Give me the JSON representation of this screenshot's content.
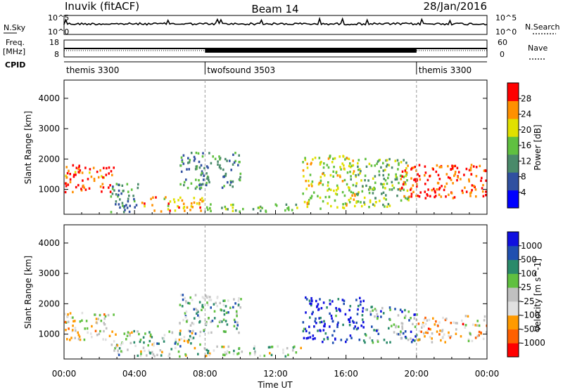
{
  "header": {
    "station": "Inuvik (fitACF)",
    "beam": "Beam 14",
    "date": "28/Jan/2016"
  },
  "nsky_panel": {
    "left_label": "N.Sky",
    "right_label": "N.Search",
    "tick_top": "10^5",
    "tick_bottom": "10^0"
  },
  "freq_panel": {
    "left_label_1": "Freq.",
    "left_label_2": "[MHz]",
    "right_label": "Nave",
    "left_tick_top": "18",
    "left_tick_bottom": "8",
    "right_tick_top": "60",
    "right_tick_bottom": "0"
  },
  "cpid_panel": {
    "label": "CPID",
    "segments": [
      {
        "name": "themis 3300",
        "start_hour": 0,
        "end_hour": 8
      },
      {
        "name": "twofsound 3503",
        "start_hour": 8,
        "end_hour": 20
      },
      {
        "name": "themis 3300",
        "start_hour": 20,
        "end_hour": 24
      }
    ]
  },
  "x_axis": {
    "label": "Time UT",
    "ticks": [
      "00:00",
      "04:00",
      "08:00",
      "12:00",
      "16:00",
      "20:00",
      "00:00"
    ]
  },
  "power_colorbar": {
    "label": "Power [dB]",
    "ticks": [
      "4",
      "8",
      "12",
      "16",
      "20",
      "24",
      "28"
    ]
  },
  "velocity_colorbar": {
    "label": "Velocity [m s^-1]",
    "ticks": [
      "-1000",
      "-500",
      "-100",
      "-25",
      "25",
      "100",
      "500",
      "1000"
    ]
  },
  "chart_data": [
    {
      "type": "heatmap",
      "name": "power",
      "ylabel": "Slant Range [km]",
      "xlabel": "",
      "xlim": [
        0,
        24
      ],
      "ylim": [
        180,
        4600
      ],
      "yticks": [
        "1000",
        "2000",
        "3000",
        "4000"
      ],
      "colorscale": {
        "min": 0,
        "max": 30,
        "colors": [
          "#0000ff",
          "#3050a0",
          "#4a8a6a",
          "#60c040",
          "#e0e000",
          "#ff9000",
          "#ff0000"
        ]
      },
      "regions": [
        {
          "t0": 0.0,
          "t1": 2.8,
          "r0": 900,
          "r1": 1800,
          "value": 26
        },
        {
          "t0": 2.6,
          "t1": 4.2,
          "r0": 200,
          "r1": 1200,
          "value": 10
        },
        {
          "t0": 4.2,
          "t1": 8.0,
          "r0": 250,
          "r1": 750,
          "value": 22
        },
        {
          "t0": 6.5,
          "t1": 10.0,
          "r0": 1000,
          "r1": 2200,
          "value": 11
        },
        {
          "t0": 8.0,
          "t1": 13.5,
          "r0": 250,
          "r1": 500,
          "value": 14
        },
        {
          "t0": 13.5,
          "t1": 16.5,
          "r0": 300,
          "r1": 2100,
          "value": 18
        },
        {
          "t0": 16.5,
          "t1": 19.5,
          "r0": 400,
          "r1": 2000,
          "value": 15
        },
        {
          "t0": 19.0,
          "t1": 24.0,
          "r0": 700,
          "r1": 1800,
          "value": 27
        }
      ]
    },
    {
      "type": "heatmap",
      "name": "velocity",
      "ylabel": "Slant Range [km]",
      "xlabel": "Time UT",
      "xlim": [
        0,
        24
      ],
      "ylim": [
        180,
        4600
      ],
      "yticks": [
        "1000",
        "2000",
        "3000",
        "4000"
      ],
      "colorscale": {
        "min": -1000,
        "max": 1000,
        "colors": [
          "#ff0000",
          "#ff6000",
          "#ff9a00",
          "#e0e0e0",
          "#c0c0c0",
          "#60c040",
          "#2a8a6a",
          "#1f4fb0",
          "#1010e0"
        ]
      },
      "regions": [
        {
          "t0": 0.0,
          "t1": 2.8,
          "r0": 800,
          "r1": 1700,
          "value": -150
        },
        {
          "t0": 2.6,
          "t1": 8.0,
          "r0": 250,
          "r1": 1100,
          "value": 80
        },
        {
          "t0": 6.5,
          "t1": 10.0,
          "r0": 1000,
          "r1": 2300,
          "value": 200
        },
        {
          "t0": 8.0,
          "t1": 13.5,
          "r0": 250,
          "r1": 600,
          "value": 60
        },
        {
          "t0": 13.5,
          "t1": 17.0,
          "r0": 700,
          "r1": 2200,
          "value": 800
        },
        {
          "t0": 17.0,
          "t1": 20.0,
          "r0": 700,
          "r1": 1900,
          "value": 400
        },
        {
          "t0": 20.0,
          "t1": 24.0,
          "r0": 700,
          "r1": 1600,
          "value": -300
        }
      ]
    }
  ]
}
